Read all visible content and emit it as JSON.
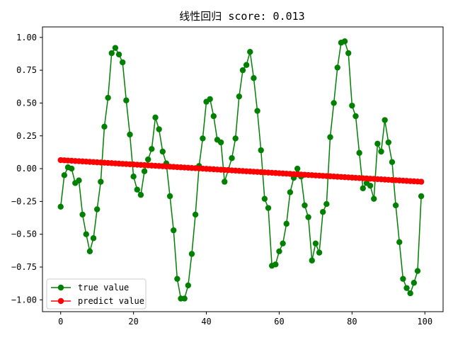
{
  "chart_data": {
    "type": "line",
    "title": "线性回归   score: 0.013",
    "xlabel": "",
    "ylabel": "",
    "xlim": [
      -5,
      105
    ],
    "ylim": [
      -1.09,
      1.08
    ],
    "xticks": [
      0,
      20,
      40,
      60,
      80,
      100
    ],
    "xtick_labels": [
      "0",
      "20",
      "40",
      "60",
      "80",
      "100"
    ],
    "yticks": [
      1.0,
      0.75,
      0.5,
      0.25,
      0.0,
      -0.25,
      -0.5,
      -0.75,
      -1.0
    ],
    "ytick_labels": [
      "1.00",
      "0.75",
      "0.50",
      "0.25",
      "0.00",
      "−0.25",
      "−0.50",
      "−0.75",
      "−1.00"
    ],
    "grid": false,
    "legend_position": "lower-left",
    "series": [
      {
        "name": "true value",
        "color": "#008000",
        "marker": "circle",
        "x": [
          0,
          1,
          2,
          3,
          4,
          5,
          6,
          7,
          8,
          9,
          10,
          11,
          12,
          13,
          14,
          15,
          16,
          17,
          18,
          19,
          20,
          21,
          22,
          23,
          24,
          25,
          26,
          27,
          28,
          29,
          30,
          31,
          32,
          33,
          34,
          35,
          36,
          37,
          38,
          39,
          40,
          41,
          42,
          43,
          44,
          45,
          46,
          47,
          48,
          49,
          50,
          51,
          52,
          53,
          54,
          55,
          56,
          57,
          58,
          59,
          60,
          61,
          62,
          63,
          64,
          65,
          66,
          67,
          68,
          69,
          70,
          71,
          72,
          73,
          74,
          75,
          76,
          77,
          78,
          79,
          80,
          81,
          82,
          83,
          84,
          85,
          86,
          87,
          88,
          89,
          90,
          91,
          92,
          93,
          94,
          95,
          96,
          97,
          98,
          99
        ],
        "values": [
          -0.29,
          -0.05,
          0.01,
          0.0,
          -0.11,
          -0.09,
          -0.35,
          -0.5,
          -0.63,
          -0.53,
          -0.31,
          -0.1,
          0.32,
          0.54,
          0.88,
          0.92,
          0.87,
          0.81,
          0.52,
          0.26,
          -0.06,
          -0.16,
          -0.2,
          -0.02,
          0.07,
          0.15,
          0.39,
          0.3,
          0.13,
          0.04,
          -0.21,
          -0.47,
          -0.84,
          -0.99,
          -0.99,
          -0.89,
          -0.65,
          -0.35,
          0.02,
          0.23,
          0.51,
          0.53,
          0.4,
          0.22,
          0.2,
          -0.1,
          -0.01,
          0.08,
          0.23,
          0.55,
          0.75,
          0.79,
          0.89,
          0.69,
          0.44,
          0.14,
          -0.23,
          -0.3,
          -0.74,
          -0.73,
          -0.63,
          -0.57,
          -0.42,
          -0.18,
          -0.07,
          0.0,
          -0.06,
          -0.28,
          -0.37,
          -0.7,
          -0.57,
          -0.64,
          -0.33,
          -0.27,
          0.24,
          0.5,
          0.77,
          0.96,
          0.97,
          0.88,
          0.48,
          0.4,
          0.12,
          -0.15,
          -0.11,
          -0.13,
          -0.23,
          0.19,
          0.13,
          0.37,
          0.2,
          0.05,
          -0.28,
          -0.56,
          -0.84,
          -0.91,
          -0.95,
          -0.87,
          -0.78,
          -0.21
        ]
      },
      {
        "name": "predict value",
        "color": "#ff0000",
        "marker": "circle",
        "x_start": 0,
        "x_end": 99,
        "y_start": 0.065,
        "y_end": -0.1
      }
    ]
  }
}
